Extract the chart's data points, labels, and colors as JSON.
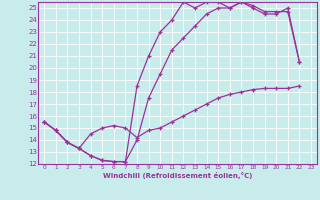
{
  "xlabel": "Windchill (Refroidissement éolien,°C)",
  "bg_color": "#c8ecec",
  "line_color": "#993399",
  "grid_color": "#ffffff",
  "xlim": [
    -0.5,
    23.5
  ],
  "ylim": [
    12,
    25.5
  ],
  "xticks": [
    0,
    1,
    2,
    3,
    4,
    5,
    6,
    7,
    8,
    9,
    10,
    11,
    12,
    13,
    14,
    15,
    16,
    17,
    18,
    19,
    20,
    21,
    22,
    23
  ],
  "yticks": [
    12,
    13,
    14,
    15,
    16,
    17,
    18,
    19,
    20,
    21,
    22,
    23,
    24,
    25
  ],
  "line1_x": [
    0,
    1,
    2,
    3,
    4,
    5,
    6,
    7,
    8,
    9,
    10,
    11,
    12,
    13,
    14,
    15,
    16,
    17,
    18,
    19,
    20,
    21,
    22
  ],
  "line1_y": [
    15.5,
    14.8,
    13.8,
    13.3,
    12.7,
    12.3,
    12.2,
    12.2,
    18.5,
    21.0,
    23.0,
    24.0,
    25.5,
    25.0,
    25.5,
    25.5,
    25.0,
    25.5,
    25.0,
    24.5,
    24.5,
    25.0,
    20.5
  ],
  "line2_x": [
    0,
    1,
    2,
    3,
    4,
    5,
    6,
    7,
    8,
    9,
    10,
    11,
    12,
    13,
    14,
    15,
    16,
    17,
    18,
    19,
    20,
    21,
    22
  ],
  "line2_y": [
    15.5,
    14.8,
    13.8,
    13.3,
    12.7,
    12.3,
    12.2,
    12.2,
    14.0,
    17.5,
    19.5,
    21.5,
    22.5,
    23.5,
    24.5,
    25.0,
    25.0,
    25.5,
    25.2,
    24.7,
    24.7,
    24.7,
    20.5
  ],
  "line3_x": [
    0,
    1,
    2,
    3,
    4,
    5,
    6,
    7,
    8,
    9,
    10,
    11,
    12,
    13,
    14,
    15,
    16,
    17,
    18,
    19,
    20,
    21,
    22
  ],
  "line3_y": [
    15.5,
    14.8,
    13.8,
    13.3,
    14.5,
    15.0,
    15.2,
    15.0,
    14.2,
    14.8,
    15.0,
    15.5,
    16.0,
    16.5,
    17.0,
    17.5,
    17.8,
    18.0,
    18.2,
    18.3,
    18.3,
    18.3,
    18.5
  ]
}
